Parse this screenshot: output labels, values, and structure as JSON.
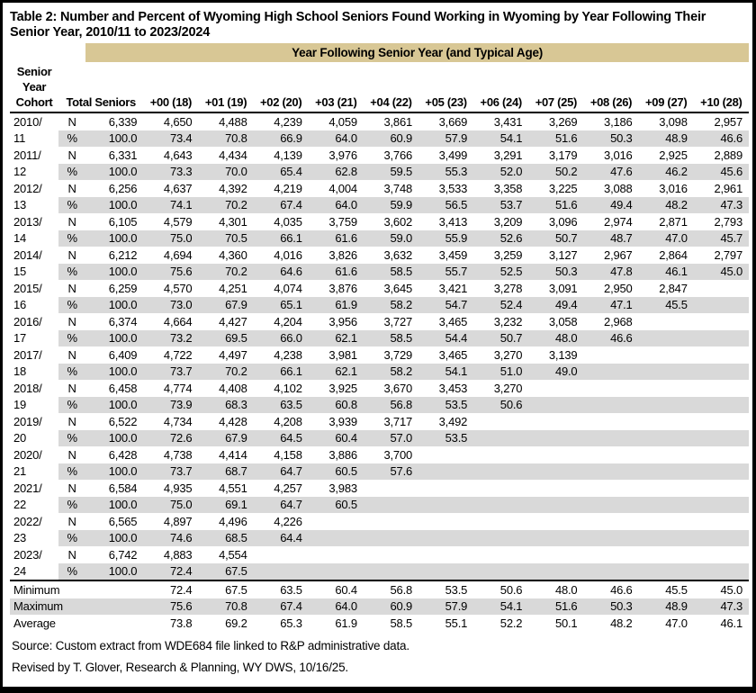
{
  "title": "Table 2: Number and Percent of Wyoming High School Seniors Found Working in Wyoming by Year Following Their Senior Year, 2010/11 to 2023/2024",
  "band_header": "Year Following Senior Year (and Typical Age)",
  "columns": {
    "cohort_lines": [
      "Senior",
      "Year",
      "Cohort"
    ],
    "total": "Total Seniors",
    "ages": [
      "+00 (18)",
      "+01 (19)",
      "+02 (20)",
      "+03 (21)",
      "+04 (22)",
      "+05 (23)",
      "+06 (24)",
      "+07 (25)",
      "+08 (26)",
      "+09 (27)",
      "+10 (28)"
    ]
  },
  "row_labels": {
    "n": "N",
    "pct": "%"
  },
  "rows": [
    {
      "cohort": "2010/11",
      "total_n": "6,339",
      "total_pct": "100.0",
      "n": [
        "4,650",
        "4,488",
        "4,239",
        "4,059",
        "3,861",
        "3,669",
        "3,431",
        "3,269",
        "3,186",
        "3,098",
        "2,957"
      ],
      "pct": [
        "73.4",
        "70.8",
        "66.9",
        "64.0",
        "60.9",
        "57.9",
        "54.1",
        "51.6",
        "50.3",
        "48.9",
        "46.6"
      ]
    },
    {
      "cohort": "2011/12",
      "total_n": "6,331",
      "total_pct": "100.0",
      "n": [
        "4,643",
        "4,434",
        "4,139",
        "3,976",
        "3,766",
        "3,499",
        "3,291",
        "3,179",
        "3,016",
        "2,925",
        "2,889"
      ],
      "pct": [
        "73.3",
        "70.0",
        "65.4",
        "62.8",
        "59.5",
        "55.3",
        "52.0",
        "50.2",
        "47.6",
        "46.2",
        "45.6"
      ]
    },
    {
      "cohort": "2012/13",
      "total_n": "6,256",
      "total_pct": "100.0",
      "n": [
        "4,637",
        "4,392",
        "4,219",
        "4,004",
        "3,748",
        "3,533",
        "3,358",
        "3,225",
        "3,088",
        "3,016",
        "2,961"
      ],
      "pct": [
        "74.1",
        "70.2",
        "67.4",
        "64.0",
        "59.9",
        "56.5",
        "53.7",
        "51.6",
        "49.4",
        "48.2",
        "47.3"
      ]
    },
    {
      "cohort": "2013/14",
      "total_n": "6,105",
      "total_pct": "100.0",
      "n": [
        "4,579",
        "4,301",
        "4,035",
        "3,759",
        "3,602",
        "3,413",
        "3,209",
        "3,096",
        "2,974",
        "2,871",
        "2,793"
      ],
      "pct": [
        "75.0",
        "70.5",
        "66.1",
        "61.6",
        "59.0",
        "55.9",
        "52.6",
        "50.7",
        "48.7",
        "47.0",
        "45.7"
      ]
    },
    {
      "cohort": "2014/15",
      "total_n": "6,212",
      "total_pct": "100.0",
      "n": [
        "4,694",
        "4,360",
        "4,016",
        "3,826",
        "3,632",
        "3,459",
        "3,259",
        "3,127",
        "2,967",
        "2,864",
        "2,797"
      ],
      "pct": [
        "75.6",
        "70.2",
        "64.6",
        "61.6",
        "58.5",
        "55.7",
        "52.5",
        "50.3",
        "47.8",
        "46.1",
        "45.0"
      ]
    },
    {
      "cohort": "2015/16",
      "total_n": "6,259",
      "total_pct": "100.0",
      "n": [
        "4,570",
        "4,251",
        "4,074",
        "3,876",
        "3,645",
        "3,421",
        "3,278",
        "3,091",
        "2,950",
        "2,847"
      ],
      "pct": [
        "73.0",
        "67.9",
        "65.1",
        "61.9",
        "58.2",
        "54.7",
        "52.4",
        "49.4",
        "47.1",
        "45.5"
      ]
    },
    {
      "cohort": "2016/17",
      "total_n": "6,374",
      "total_pct": "100.0",
      "n": [
        "4,664",
        "4,427",
        "4,204",
        "3,956",
        "3,727",
        "3,465",
        "3,232",
        "3,058",
        "2,968"
      ],
      "pct": [
        "73.2",
        "69.5",
        "66.0",
        "62.1",
        "58.5",
        "54.4",
        "50.7",
        "48.0",
        "46.6"
      ]
    },
    {
      "cohort": "2017/18",
      "total_n": "6,409",
      "total_pct": "100.0",
      "n": [
        "4,722",
        "4,497",
        "4,238",
        "3,981",
        "3,729",
        "3,465",
        "3,270",
        "3,139"
      ],
      "pct": [
        "73.7",
        "70.2",
        "66.1",
        "62.1",
        "58.2",
        "54.1",
        "51.0",
        "49.0"
      ]
    },
    {
      "cohort": "2018/19",
      "total_n": "6,458",
      "total_pct": "100.0",
      "n": [
        "4,774",
        "4,408",
        "4,102",
        "3,925",
        "3,670",
        "3,453",
        "3,270"
      ],
      "pct": [
        "73.9",
        "68.3",
        "63.5",
        "60.8",
        "56.8",
        "53.5",
        "50.6"
      ]
    },
    {
      "cohort": "2019/20",
      "total_n": "6,522",
      "total_pct": "100.0",
      "n": [
        "4,734",
        "4,428",
        "4,208",
        "3,939",
        "3,717",
        "3,492"
      ],
      "pct": [
        "72.6",
        "67.9",
        "64.5",
        "60.4",
        "57.0",
        "53.5"
      ]
    },
    {
      "cohort": "2020/21",
      "total_n": "6,428",
      "total_pct": "100.0",
      "n": [
        "4,738",
        "4,414",
        "4,158",
        "3,886",
        "3,700"
      ],
      "pct": [
        "73.7",
        "68.7",
        "64.7",
        "60.5",
        "57.6"
      ]
    },
    {
      "cohort": "2021/22",
      "total_n": "6,584",
      "total_pct": "100.0",
      "n": [
        "4,935",
        "4,551",
        "4,257",
        "3,983"
      ],
      "pct": [
        "75.0",
        "69.1",
        "64.7",
        "60.5"
      ]
    },
    {
      "cohort": "2022/23",
      "total_n": "6,565",
      "total_pct": "100.0",
      "n": [
        "4,897",
        "4,496",
        "4,226"
      ],
      "pct": [
        "74.6",
        "68.5",
        "64.4"
      ]
    },
    {
      "cohort": "2023/24",
      "total_n": "6,742",
      "total_pct": "100.0",
      "n": [
        "4,883",
        "4,554"
      ],
      "pct": [
        "72.4",
        "67.5"
      ]
    }
  ],
  "summary": [
    {
      "label": "Minimum",
      "values": [
        "72.4",
        "67.5",
        "63.5",
        "60.4",
        "56.8",
        "53.5",
        "50.6",
        "48.0",
        "46.6",
        "45.5",
        "45.0"
      ]
    },
    {
      "label": "Maximum",
      "values": [
        "75.6",
        "70.8",
        "67.4",
        "64.0",
        "60.9",
        "57.9",
        "54.1",
        "51.6",
        "50.3",
        "48.9",
        "47.3"
      ]
    },
    {
      "label": "Average",
      "values": [
        "73.8",
        "69.2",
        "65.3",
        "61.9",
        "58.5",
        "55.1",
        "52.2",
        "50.1",
        "48.2",
        "47.0",
        "46.1"
      ]
    }
  ],
  "footnotes": [
    "Source: Custom extract from WDE684 file linked to R&P administrative data.",
    "Revised by T. Glover, Research & Planning, WY DWS, 10/16/25."
  ],
  "colors": {
    "band": "#d8c795",
    "stripe": "#d9d9d9",
    "text": "#000000",
    "frame": "#000000"
  }
}
